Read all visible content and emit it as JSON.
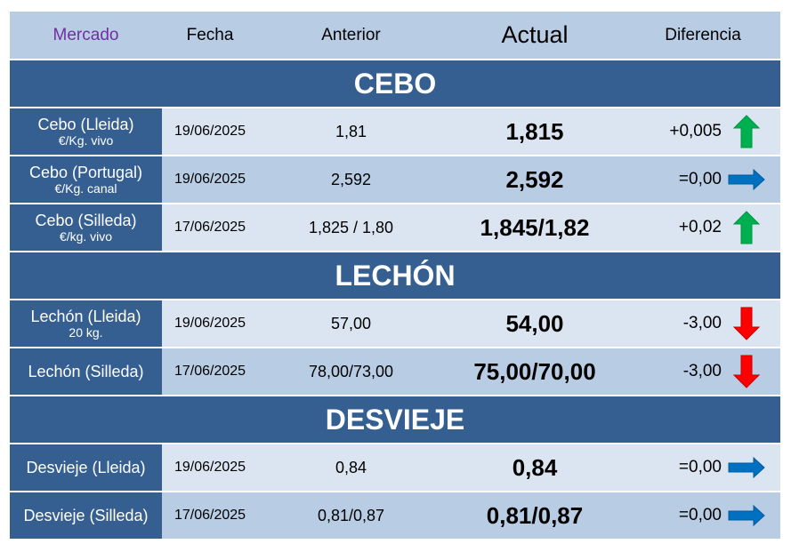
{
  "header": {
    "mercado": "Mercado",
    "fecha": "Fecha",
    "anterior": "Anterior",
    "actual": "Actual",
    "diferencia": "Diferencia"
  },
  "sections": [
    {
      "title": "CEBO",
      "rows": [
        {
          "name": "Cebo (Lleida)",
          "unit": "€/Kg. vivo",
          "fecha": "19/06/2025",
          "anterior": "1,81",
          "actual": "1,815",
          "diferencia": "+0,005",
          "trend": "up"
        },
        {
          "name": "Cebo (Portugal)",
          "unit": "€/Kg. canal",
          "fecha": "19/06/2025",
          "anterior": "2,592",
          "actual": "2,592",
          "diferencia": "=0,00",
          "trend": "equal"
        },
        {
          "name": "Cebo (Silleda)",
          "unit": "€/kg. vivo",
          "fecha": "17/06/2025",
          "anterior": "1,825 / 1,80",
          "actual": "1,845/1,82",
          "diferencia": "+0,02",
          "trend": "up"
        }
      ]
    },
    {
      "title": "LECHÓN",
      "rows": [
        {
          "name": "Lechón (Lleida)",
          "unit": "20 kg.",
          "fecha": "19/06/2025",
          "anterior": "57,00",
          "actual": "54,00",
          "diferencia": "-3,00",
          "trend": "down"
        },
        {
          "name": "Lechón (Silleda)",
          "unit": "",
          "fecha": "17/06/2025",
          "anterior": "78,00/73,00",
          "actual": "75,00/70,00",
          "diferencia": "-3,00",
          "trend": "down"
        }
      ]
    },
    {
      "title": "DESVIEJE",
      "rows": [
        {
          "name": "Desvieje (Lleida)",
          "unit": "",
          "fecha": "19/06/2025",
          "anterior": "0,84",
          "actual": "0,84",
          "diferencia": "=0,00",
          "trend": "equal"
        },
        {
          "name": "Desvieje (Silleda)",
          "unit": "",
          "fecha": "17/06/2025",
          "anterior": "0,81/0,87",
          "actual": "0,81/0,87",
          "diferencia": "=0,00",
          "trend": "equal"
        }
      ]
    }
  ],
  "colors": {
    "section_bg": "#365f91",
    "header_bg": "#b8cce4",
    "row_light": "#dbe5f1",
    "row_mid": "#b8cce4",
    "up_arrow": "#00b050",
    "down_arrow": "#ff0000",
    "equal_arrow": "#0070c0"
  }
}
